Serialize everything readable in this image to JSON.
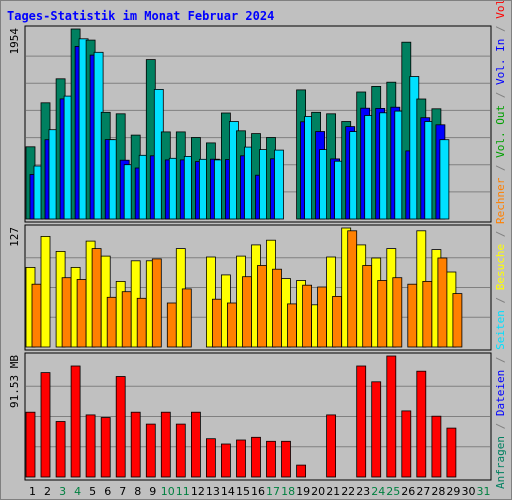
{
  "chart_data": {
    "title": "Tages-Statistik im Monat Februar 2024",
    "title_color": "#0000ff",
    "type": "bar",
    "days": [
      "1",
      "2",
      "3",
      "4",
      "5",
      "6",
      "7",
      "8",
      "9",
      "10",
      "11",
      "12",
      "13",
      "14",
      "15",
      "16",
      "17",
      "18",
      "19",
      "20",
      "21",
      "22",
      "23",
      "24",
      "25",
      "26",
      "27",
      "28",
      "29",
      "30",
      "31"
    ],
    "weekend_days": [
      "3",
      "4",
      "10",
      "11",
      "17",
      "18",
      "24",
      "25",
      "31"
    ],
    "weekend_label_color": "#008040",
    "panels": [
      {
        "id": "requests",
        "ymax_label": "1954",
        "ymax": 1954,
        "series": [
          {
            "name": "Anfragen",
            "color": "#008060",
            "values": [
              743,
              1195,
              1442,
              1954,
              1840,
              1097,
              1082,
              863,
              1639,
              896,
              896,
              838,
              783,
              1090,
              907,
              878,
              838,
              0,
              1328,
              1097,
              1082,
              1003,
              1306,
              1364,
              1407,
              1818,
              1234,
              1133,
              0,
              0,
              0
            ]
          },
          {
            "name": "Dateien",
            "color": "#0000ff",
            "values": [
              458,
              816,
              1235,
              1775,
              1686,
              817,
              605,
              524,
              650,
              608,
              608,
              590,
              615,
              611,
              650,
              450,
              619,
              0,
              1000,
              900,
              618,
              950,
              1140,
              1137,
              1150,
              700,
              1042,
              969,
              0,
              0,
              0
            ]
          },
          {
            "name": "Seiten",
            "color": "#00e0ff",
            "values": [
              545,
              918,
              1264,
              1853,
              1714,
              816,
              558,
              655,
              1333,
              624,
              644,
              614,
              608,
              1003,
              739,
              714,
              709,
              0,
              1054,
              714,
              594,
              899,
              1064,
              1092,
              1110,
              1466,
              1003,
              816,
              0,
              0,
              0
            ]
          }
        ]
      },
      {
        "id": "visits",
        "ymax_label": "127",
        "ymax": 127,
        "series": [
          {
            "name": "Besuche",
            "color": "#ffff00",
            "values": [
              85,
              118,
              102,
              85,
              113,
              97,
              70,
              92,
              92,
              0,
              105,
              0,
              96,
              77,
              97,
              109,
              114,
              73,
              71,
              45,
              96,
              127,
              109,
              95,
              105,
              0,
              124,
              104,
              80,
              0,
              0
            ]
          },
          {
            "name": "Rechner",
            "color": "#ff8000",
            "values": [
              67,
              0,
              74,
              72,
              105,
              53,
              59,
              52,
              94,
              47,
              62,
              0,
              51,
              47,
              75,
              87,
              83,
              46,
              66,
              64,
              54,
              124,
              87,
              71,
              74,
              67,
              70,
              95,
              57,
              0,
              0
            ]
          }
        ]
      },
      {
        "id": "volume",
        "ymax_label": "91.53 MB",
        "ymax": 91.53,
        "series": [
          {
            "name": "Volumen",
            "color": "#ff0000",
            "values": [
              49,
              79,
              42,
              84,
              47,
              45,
              76,
              49,
              40,
              49,
              40,
              49,
              29,
              25,
              28,
              30,
              27,
              27,
              9,
              0,
              47,
              0,
              84,
              72,
              91.53,
              50,
              80,
              46,
              37,
              0,
              0
            ]
          }
        ]
      }
    ],
    "right_legend": [
      {
        "text": "Anfragen",
        "color": "#008060"
      },
      {
        "text": " / ",
        "color": "#808080"
      },
      {
        "text": "Dateien",
        "color": "#0000ff"
      },
      {
        "text": " / ",
        "color": "#808080"
      },
      {
        "text": "Seiten",
        "color": "#00e0ff"
      },
      {
        "text": " / ",
        "color": "#808080"
      },
      {
        "text": "Besuche",
        "color": "#ffff00"
      },
      {
        "text": " / ",
        "color": "#808080"
      },
      {
        "text": "Rechner",
        "color": "#ff8000"
      },
      {
        "text": " / ",
        "color": "#808080"
      },
      {
        "text": "Vol. Out",
        "color": "#00a000"
      },
      {
        "text": " / ",
        "color": "#808080"
      },
      {
        "text": "Vol. In",
        "color": "#0000ff"
      },
      {
        "text": " / ",
        "color": "#808080"
      },
      {
        "text": "Volumen",
        "color": "#ff0000"
      }
    ],
    "grid": true
  }
}
